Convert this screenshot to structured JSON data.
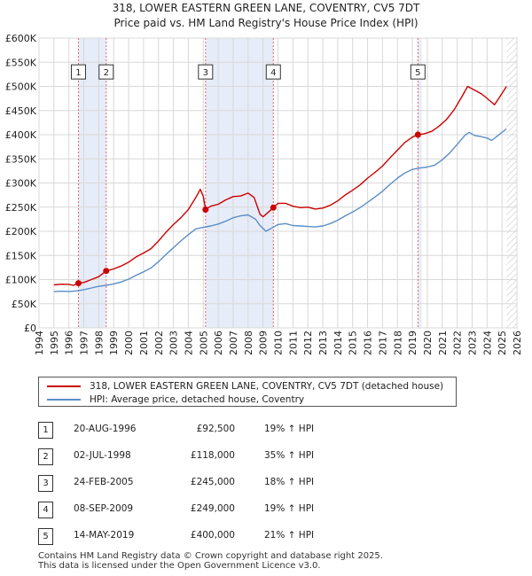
{
  "chart_data": {
    "type": "line",
    "title": "318, LOWER EASTERN GREEN LANE, COVENTRY, CV5 7DT",
    "subtitle": "Price paid vs. HM Land Registry's House Price Index (HPI)",
    "xlim": [
      1994,
      2026
    ],
    "ylim": [
      0,
      600000
    ],
    "x_ticks": [
      "1994",
      "1995",
      "1996",
      "1997",
      "1998",
      "1999",
      "2000",
      "2001",
      "2002",
      "2003",
      "2004",
      "2005",
      "2006",
      "2007",
      "2008",
      "2009",
      "2010",
      "2011",
      "2012",
      "2013",
      "2014",
      "2015",
      "2016",
      "2017",
      "2018",
      "2019",
      "2020",
      "2021",
      "2022",
      "2023",
      "2024",
      "2025",
      "2026"
    ],
    "y_ticks": [
      {
        "value": 0,
        "label": "£0"
      },
      {
        "value": 50000,
        "label": "£50K"
      },
      {
        "value": 100000,
        "label": "£100K"
      },
      {
        "value": 150000,
        "label": "£150K"
      },
      {
        "value": 200000,
        "label": "£200K"
      },
      {
        "value": 250000,
        "label": "£250K"
      },
      {
        "value": 300000,
        "label": "£300K"
      },
      {
        "value": 350000,
        "label": "£350K"
      },
      {
        "value": 400000,
        "label": "£400K"
      },
      {
        "value": 450000,
        "label": "£450K"
      },
      {
        "value": 500000,
        "label": "£500K"
      },
      {
        "value": 550000,
        "label": "£550K"
      },
      {
        "value": 600000,
        "label": "£600K"
      }
    ],
    "series": [
      {
        "name": "318, LOWER EASTERN GREEN LANE, COVENTRY, CV5 7DT (detached house)",
        "color": "#cc0000",
        "points": [
          [
            1995.0,
            89000
          ],
          [
            1995.5,
            90500
          ],
          [
            1996.0,
            90000
          ],
          [
            1996.3,
            88000
          ],
          [
            1996.64,
            92500
          ],
          [
            1997.0,
            94000
          ],
          [
            1997.5,
            100000
          ],
          [
            1998.0,
            106000
          ],
          [
            1998.5,
            118000
          ],
          [
            1999.0,
            122000
          ],
          [
            1999.5,
            128000
          ],
          [
            2000.0,
            136000
          ],
          [
            2000.5,
            147000
          ],
          [
            2001.0,
            155000
          ],
          [
            2001.5,
            164000
          ],
          [
            2002.0,
            180000
          ],
          [
            2002.5,
            198000
          ],
          [
            2003.0,
            214000
          ],
          [
            2003.5,
            228000
          ],
          [
            2004.0,
            245000
          ],
          [
            2004.5,
            270000
          ],
          [
            2004.8,
            287000
          ],
          [
            2005.0,
            272000
          ],
          [
            2005.15,
            245000
          ],
          [
            2005.5,
            252000
          ],
          [
            2006.0,
            256000
          ],
          [
            2006.5,
            265000
          ],
          [
            2007.0,
            272000
          ],
          [
            2007.5,
            273000
          ],
          [
            2008.0,
            279000
          ],
          [
            2008.4,
            270000
          ],
          [
            2008.8,
            235000
          ],
          [
            2009.0,
            230000
          ],
          [
            2009.3,
            238000
          ],
          [
            2009.69,
            249000
          ],
          [
            2010.0,
            258000
          ],
          [
            2010.5,
            258000
          ],
          [
            2011.0,
            252000
          ],
          [
            2011.5,
            249000
          ],
          [
            2012.0,
            250000
          ],
          [
            2012.5,
            246000
          ],
          [
            2013.0,
            248000
          ],
          [
            2013.5,
            254000
          ],
          [
            2014.0,
            263000
          ],
          [
            2014.5,
            275000
          ],
          [
            2015.0,
            285000
          ],
          [
            2015.5,
            296000
          ],
          [
            2016.0,
            310000
          ],
          [
            2016.5,
            322000
          ],
          [
            2017.0,
            335000
          ],
          [
            2017.5,
            352000
          ],
          [
            2018.0,
            368000
          ],
          [
            2018.5,
            384000
          ],
          [
            2019.0,
            395000
          ],
          [
            2019.37,
            400000
          ],
          [
            2019.8,
            402000
          ],
          [
            2020.3,
            407000
          ],
          [
            2020.8,
            418000
          ],
          [
            2021.3,
            432000
          ],
          [
            2021.8,
            452000
          ],
          [
            2022.3,
            478000
          ],
          [
            2022.7,
            500000
          ],
          [
            2023.0,
            495000
          ],
          [
            2023.3,
            490000
          ],
          [
            2023.6,
            485000
          ],
          [
            2023.9,
            478000
          ],
          [
            2024.2,
            470000
          ],
          [
            2024.5,
            462000
          ],
          [
            2024.8,
            476000
          ],
          [
            2025.1,
            490000
          ],
          [
            2025.3,
            500000
          ]
        ]
      },
      {
        "name": "HPI: Average price, detached house, Coventry",
        "color": "#5b8ec6",
        "points": [
          [
            1995.0,
            75000
          ],
          [
            1995.5,
            76000
          ],
          [
            1996.0,
            75500
          ],
          [
            1996.5,
            76500
          ],
          [
            1997.0,
            79000
          ],
          [
            1997.5,
            82500
          ],
          [
            1998.0,
            86000
          ],
          [
            1998.5,
            88000
          ],
          [
            1999.0,
            91000
          ],
          [
            1999.5,
            95000
          ],
          [
            2000.0,
            101000
          ],
          [
            2000.5,
            109000
          ],
          [
            2001.0,
            116000
          ],
          [
            2001.5,
            124000
          ],
          [
            2002.0,
            137000
          ],
          [
            2002.5,
            152000
          ],
          [
            2003.0,
            166000
          ],
          [
            2003.5,
            180000
          ],
          [
            2004.0,
            193000
          ],
          [
            2004.5,
            205000
          ],
          [
            2005.0,
            208000
          ],
          [
            2005.5,
            211000
          ],
          [
            2006.0,
            215000
          ],
          [
            2006.5,
            221000
          ],
          [
            2007.0,
            228000
          ],
          [
            2007.5,
            232000
          ],
          [
            2008.0,
            234000
          ],
          [
            2008.5,
            225000
          ],
          [
            2008.8,
            212000
          ],
          [
            2009.2,
            200000
          ],
          [
            2009.6,
            207000
          ],
          [
            2010.0,
            214000
          ],
          [
            2010.5,
            216000
          ],
          [
            2011.0,
            212000
          ],
          [
            2011.5,
            211000
          ],
          [
            2012.0,
            210000
          ],
          [
            2012.5,
            209000
          ],
          [
            2013.0,
            211000
          ],
          [
            2013.5,
            216000
          ],
          [
            2014.0,
            223000
          ],
          [
            2014.5,
            232000
          ],
          [
            2015.0,
            240000
          ],
          [
            2015.5,
            249000
          ],
          [
            2016.0,
            260000
          ],
          [
            2016.5,
            271000
          ],
          [
            2017.0,
            283000
          ],
          [
            2017.5,
            297000
          ],
          [
            2018.0,
            310000
          ],
          [
            2018.5,
            321000
          ],
          [
            2019.0,
            328000
          ],
          [
            2019.5,
            331000
          ],
          [
            2020.0,
            333000
          ],
          [
            2020.5,
            337000
          ],
          [
            2021.0,
            348000
          ],
          [
            2021.5,
            362000
          ],
          [
            2022.0,
            380000
          ],
          [
            2022.5,
            398000
          ],
          [
            2022.8,
            405000
          ],
          [
            2023.2,
            398000
          ],
          [
            2023.6,
            396000
          ],
          [
            2024.0,
            393000
          ],
          [
            2024.3,
            388000
          ],
          [
            2024.6,
            395000
          ],
          [
            2025.0,
            405000
          ],
          [
            2025.3,
            412000
          ]
        ]
      }
    ],
    "sales": [
      {
        "id": "1",
        "year": 1996.64,
        "price": 92500
      },
      {
        "id": "2",
        "year": 1998.5,
        "price": 118000
      },
      {
        "id": "3",
        "year": 2005.15,
        "price": 245000
      },
      {
        "id": "4",
        "year": 2009.69,
        "price": 249000
      },
      {
        "id": "5",
        "year": 2019.37,
        "price": 400000
      }
    ],
    "shaded_years": [
      [
        1996.64,
        1998.5
      ],
      [
        2005.15,
        2009.69
      ],
      [
        2019.37,
        2019.62
      ]
    ],
    "hatched_from_year": 2025.3,
    "marker_label_value": 530000
  },
  "legend": {
    "items": [
      {
        "label": "318, LOWER EASTERN GREEN LANE, COVENTRY, CV5 7DT (detached house)",
        "color": "#cc0000"
      },
      {
        "label": "HPI: Average price, detached house, Coventry",
        "color": "#5b8ec6"
      }
    ]
  },
  "transactions": [
    {
      "num": "1",
      "date": "20-AUG-1996",
      "price": "£92,500",
      "hpi": "19% ↑ HPI"
    },
    {
      "num": "2",
      "date": "02-JUL-1998",
      "price": "£118,000",
      "hpi": "35% ↑ HPI"
    },
    {
      "num": "3",
      "date": "24-FEB-2005",
      "price": "£245,000",
      "hpi": "18% ↑ HPI"
    },
    {
      "num": "4",
      "date": "08-SEP-2009",
      "price": "£249,000",
      "hpi": "19% ↑ HPI"
    },
    {
      "num": "5",
      "date": "14-MAY-2019",
      "price": "£400,000",
      "hpi": "21% ↑ HPI"
    }
  ],
  "footer": {
    "line1": "Contains HM Land Registry data © Crown copyright and database right 2025.",
    "line2": "This data is licensed under the Open Government Licence v3.0."
  }
}
